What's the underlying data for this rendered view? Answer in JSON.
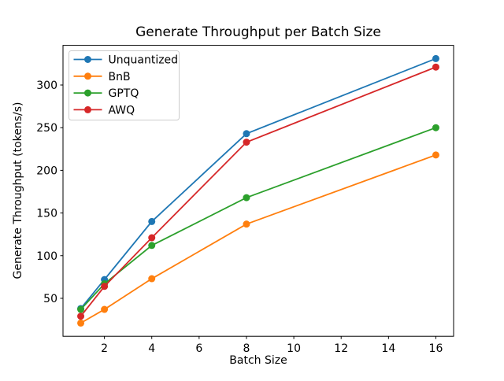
{
  "figure": {
    "background": "#ffffff",
    "spine_color": "#000000",
    "tick_color": "#000000"
  },
  "chart_data": {
    "type": "line",
    "title": "Generate Throughput per Batch Size",
    "xlabel": "Batch Size",
    "ylabel": "Generate Throughput (tokens/s)",
    "x": [
      1,
      2,
      4,
      8,
      16
    ],
    "series": [
      {
        "name": "Unquantized",
        "color": "#1f77b4",
        "values": [
          38,
          72,
          140,
          243,
          331
        ]
      },
      {
        "name": "BnB",
        "color": "#ff7f0e",
        "values": [
          21,
          37,
          73,
          137,
          218
        ]
      },
      {
        "name": "GPTQ",
        "color": "#2ca02c",
        "values": [
          37,
          67,
          112,
          168,
          250
        ]
      },
      {
        "name": "AWQ",
        "color": "#d62728",
        "values": [
          29,
          64,
          121,
          233,
          321
        ]
      }
    ],
    "x_ticks": [
      2,
      4,
      6,
      8,
      10,
      12,
      14,
      16
    ],
    "y_ticks": [
      50,
      100,
      150,
      200,
      250,
      300
    ],
    "xlim": [
      0.25,
      16.75
    ],
    "ylim": [
      5.5,
      346.5
    ],
    "grid": false,
    "marker": "o",
    "legend_position": "upper left"
  }
}
